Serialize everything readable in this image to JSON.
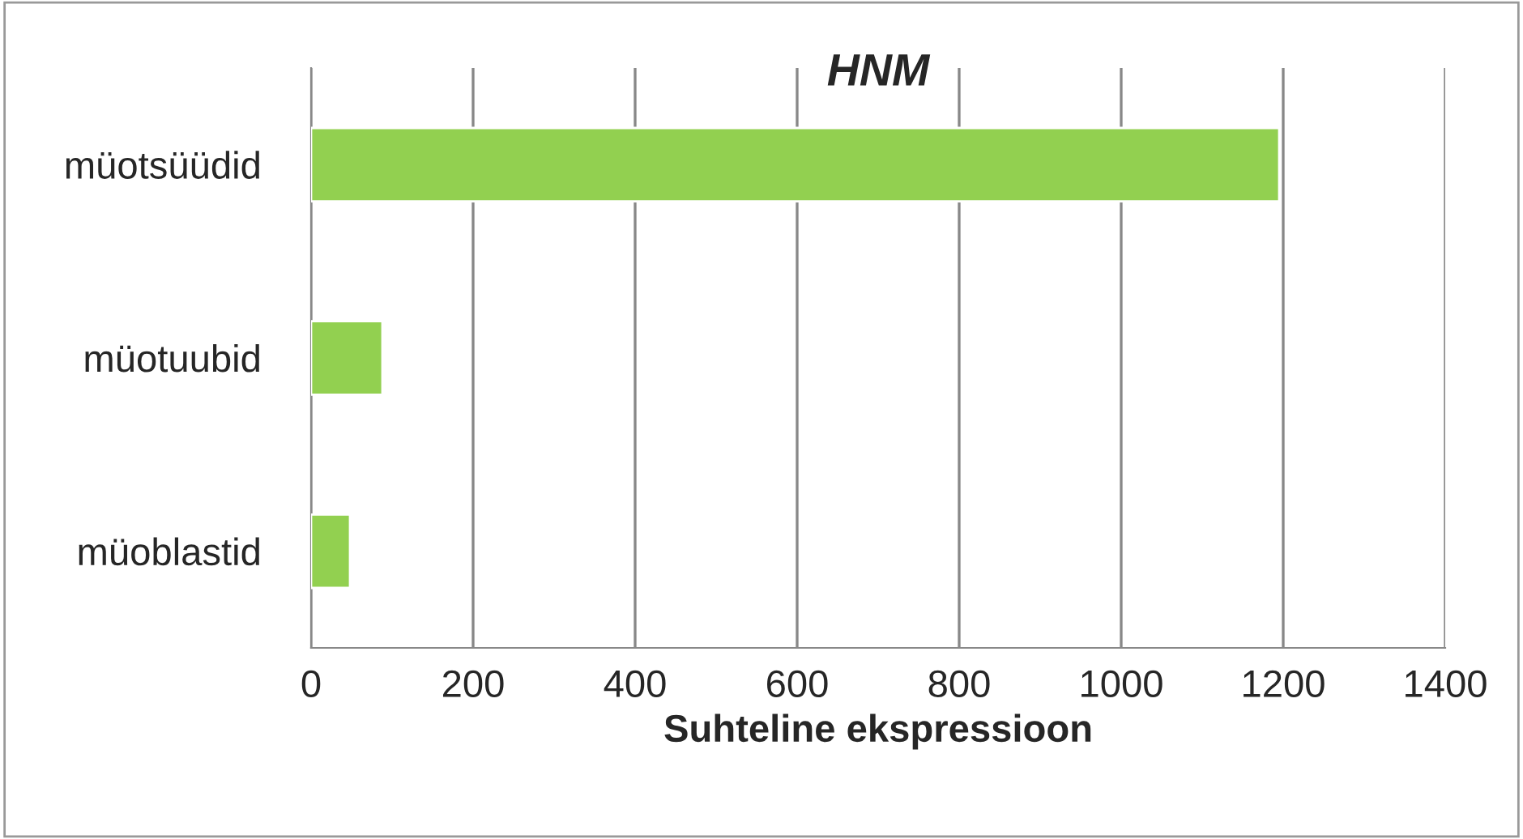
{
  "chart_data": {
    "type": "bar",
    "orientation": "horizontal",
    "title": "HNM",
    "xlabel": "Suhteline ekspressioon",
    "categories": [
      "müotsüüdid",
      "müotuubid",
      "müoblastid"
    ],
    "values": [
      1195,
      88,
      48
    ],
    "color": "#92d050",
    "xlim": [
      0,
      1400
    ],
    "xticks": [
      0,
      200,
      400,
      600,
      800,
      1000,
      1200,
      1400
    ],
    "grid": "x",
    "legend": false
  }
}
